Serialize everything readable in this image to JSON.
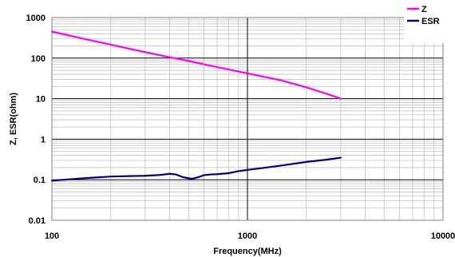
{
  "chart_data": {
    "type": "line",
    "xlabel": "Frequency(MHz)",
    "ylabel": "Z, ESR(ohm)",
    "x_scale": "log",
    "y_scale": "log",
    "xlim": [
      100,
      10000
    ],
    "ylim": [
      0.01,
      1000
    ],
    "x_ticks": [
      "100",
      "1000",
      "10000"
    ],
    "y_ticks": [
      "0.01",
      "0.1",
      "1",
      "10",
      "100",
      "1000"
    ],
    "grid": true,
    "legend_position": "top-right",
    "series": [
      {
        "name": "Z",
        "color": "#ff00ff",
        "x": [
          100,
          150,
          200,
          300,
          400,
          500,
          700,
          1000,
          1500,
          2000,
          2500,
          3000
        ],
        "y": [
          450,
          290,
          215,
          140,
          105,
          85,
          60,
          42,
          28,
          19,
          13.5,
          10
        ]
      },
      {
        "name": "ESR",
        "color": "#000080",
        "x": [
          100,
          150,
          200,
          250,
          300,
          350,
          400,
          430,
          470,
          520,
          560,
          600,
          650,
          700,
          800,
          900,
          1000,
          1200,
          1500,
          2000,
          2500,
          3000
        ],
        "y": [
          0.095,
          0.11,
          0.12,
          0.123,
          0.125,
          0.13,
          0.14,
          0.135,
          0.115,
          0.105,
          0.115,
          0.13,
          0.135,
          0.137,
          0.145,
          0.163,
          0.175,
          0.195,
          0.225,
          0.275,
          0.31,
          0.35
        ]
      }
    ]
  }
}
